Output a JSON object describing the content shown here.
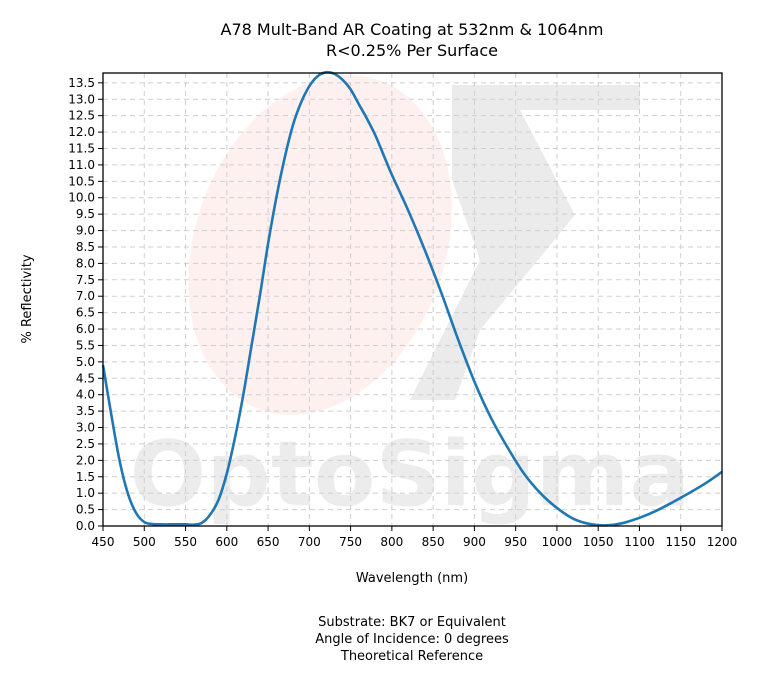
{
  "chart_data": {
    "type": "line",
    "title": "A78 Mult-Band AR Coating at 532nm & 1064nm",
    "subtitle": "R<0.25% Per Surface",
    "xlabel": "Wavelength (nm)",
    "ylabel": "% Reflectivity",
    "xlim": [
      450,
      1200
    ],
    "ylim": [
      0,
      13.8
    ],
    "x_ticks": [
      "450",
      "500",
      "550",
      "600",
      "650",
      "700",
      "750",
      "800",
      "850",
      "900",
      "950",
      "1000",
      "1050",
      "1100",
      "1150",
      "1200"
    ],
    "y_ticks": [
      "0.0",
      "0.5",
      "1.0",
      "1.5",
      "2.0",
      "2.5",
      "3.0",
      "3.5",
      "4.0",
      "4.5",
      "5.0",
      "5.5",
      "6.0",
      "6.5",
      "7.0",
      "7.5",
      "8.0",
      "8.5",
      "9.0",
      "9.5",
      "10.0",
      "10.5",
      "11.0",
      "11.5",
      "12.0",
      "12.5",
      "13.0",
      "13.5"
    ],
    "grid": true,
    "series": [
      {
        "color": "#1f77b4",
        "x": [
          450,
          460,
          470,
          480,
          490,
          500,
          510,
          520,
          530,
          540,
          550,
          560,
          570,
          580,
          590,
          600,
          610,
          620,
          630,
          640,
          650,
          660,
          670,
          680,
          690,
          700,
          710,
          720,
          730,
          740,
          750,
          760,
          770,
          780,
          790,
          800,
          820,
          840,
          860,
          880,
          900,
          920,
          940,
          960,
          980,
          1000,
          1020,
          1040,
          1060,
          1080,
          1100,
          1120,
          1140,
          1160,
          1180,
          1200
        ],
        "y": [
          4.9,
          3.4,
          2.0,
          1.0,
          0.4,
          0.12,
          0.06,
          0.05,
          0.05,
          0.05,
          0.05,
          0.04,
          0.1,
          0.35,
          0.8,
          1.6,
          2.7,
          4.0,
          5.5,
          7.0,
          8.6,
          10.0,
          11.2,
          12.2,
          12.9,
          13.4,
          13.7,
          13.82,
          13.78,
          13.6,
          13.3,
          12.85,
          12.4,
          11.9,
          11.3,
          10.7,
          9.6,
          8.4,
          7.1,
          5.7,
          4.4,
          3.3,
          2.4,
          1.6,
          1.0,
          0.55,
          0.22,
          0.06,
          0.02,
          0.09,
          0.25,
          0.46,
          0.72,
          1.0,
          1.3,
          1.65
        ]
      }
    ]
  },
  "watermark": {
    "text": "OptoSigma"
  },
  "footnotes": [
    "Substrate: BK7 or Equivalent",
    "Angle of Incidence: 0 degrees",
    "Theoretical Reference"
  ]
}
